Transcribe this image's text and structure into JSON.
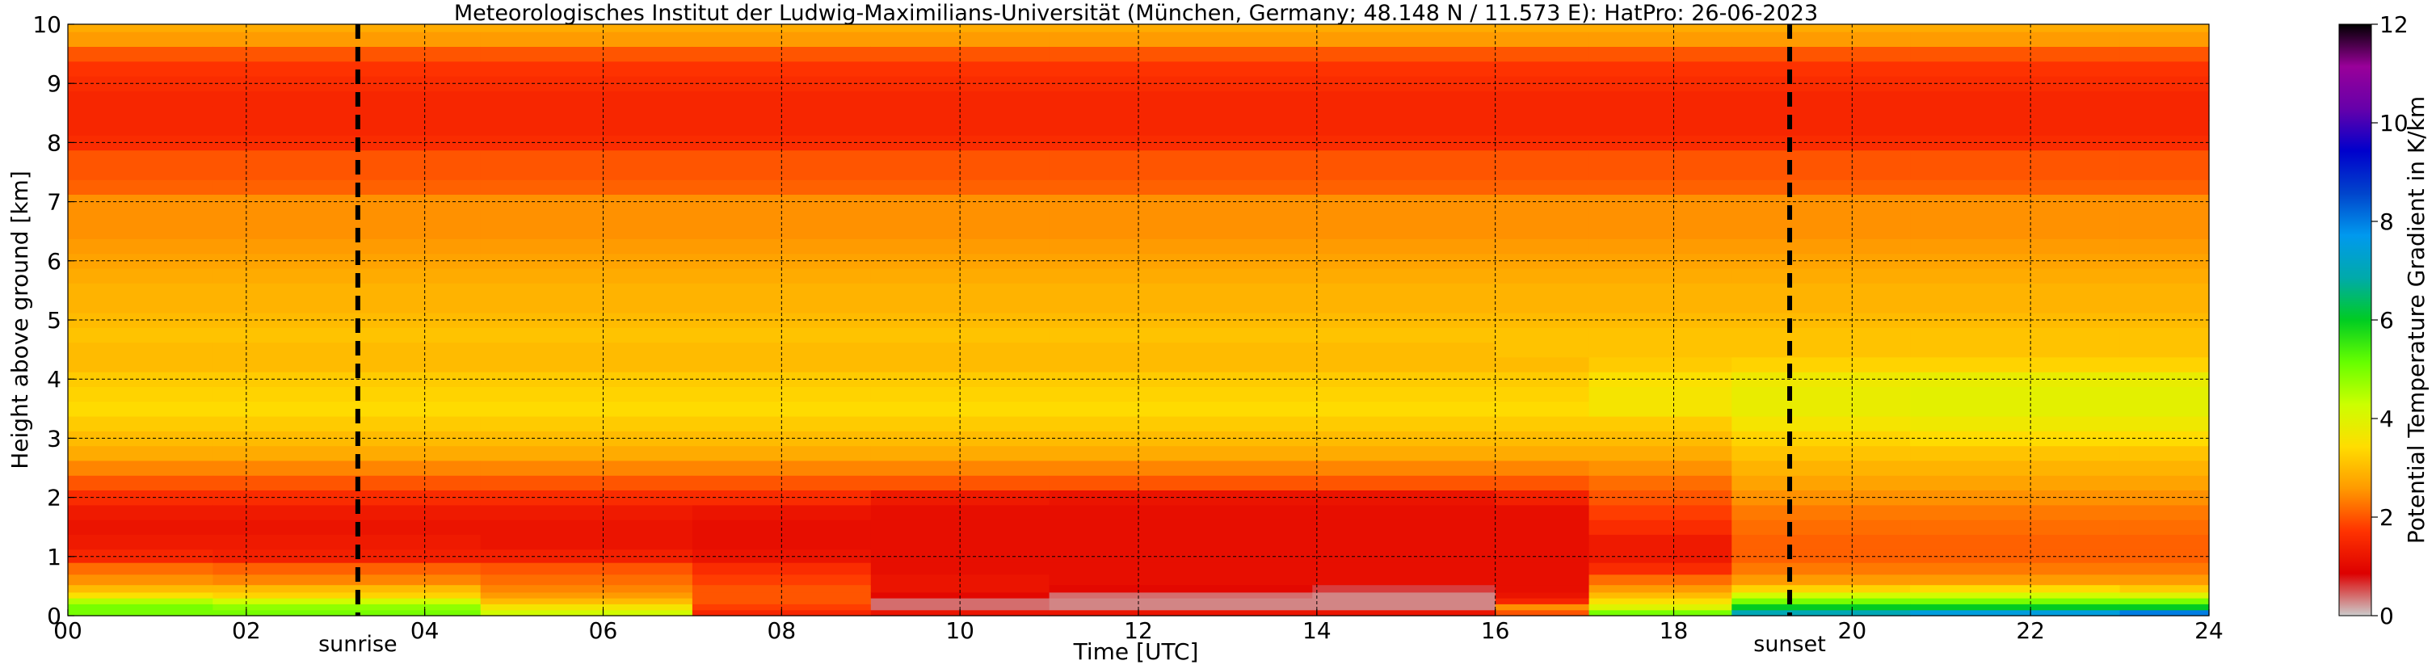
{
  "chart_data": {
    "type": "heatmap",
    "title": "Meteorologisches Institut der Ludwig-Maximilians-Universität (München, Germany; 48.148 N / 11.573 E):    HatPro: 26-06-2023",
    "xlabel": "Time [UTC]",
    "ylabel": "Height above ground [km]",
    "xlim": [
      0,
      24
    ],
    "ylim": [
      0,
      10
    ],
    "x_ticks": [
      "00",
      "02",
      "04",
      "06",
      "08",
      "10",
      "12",
      "14",
      "16",
      "18",
      "20",
      "22",
      "24"
    ],
    "y_ticks": [
      "0",
      "1",
      "2",
      "3",
      "4",
      "5",
      "6",
      "7",
      "8",
      "9",
      "10"
    ],
    "grid": true,
    "colorbar": {
      "label": "Potential Temperature Gradient in K/km",
      "range": [
        0,
        12
      ],
      "ticks": [
        "0",
        "2",
        "4",
        "6",
        "8",
        "10",
        "12"
      ],
      "colors": [
        "#cccccc",
        "#dd0000",
        "#ff3300",
        "#ff9900",
        "#ffdd00",
        "#ccff00",
        "#66ff00",
        "#00cc22",
        "#00aaaa",
        "#0099ee",
        "#0044cc",
        "#0000cc",
        "#6600aa",
        "#990099",
        "#000000"
      ]
    },
    "markers": [
      {
        "label": "sunrise",
        "time": 3.25
      },
      {
        "label": "sunset",
        "time": 19.3
      }
    ],
    "height_km": [
      0.05,
      0.15,
      0.25,
      0.35,
      0.45,
      0.6,
      0.8,
      1.0,
      1.25,
      1.5,
      1.75,
      2.0,
      2.25,
      2.5,
      2.75,
      3.0,
      3.25,
      3.5,
      3.75,
      4.0,
      4.25,
      4.5,
      4.75,
      5.0,
      5.25,
      5.5,
      5.75,
      6.0,
      6.25,
      6.5,
      6.75,
      7.0,
      7.25,
      7.5,
      7.75,
      8.0,
      8.25,
      8.5,
      8.75,
      9.0,
      9.25,
      9.5,
      9.75,
      10.0
    ],
    "profiles": [
      {
        "time": 0,
        "values": [
          5.0,
          5.0,
          4.5,
          3.5,
          3.0,
          2.5,
          2.2,
          1.5,
          1.3,
          1.2,
          1.3,
          1.6,
          2.0,
          2.4,
          2.8,
          3.0,
          3.2,
          3.4,
          3.3,
          3.2,
          3.0,
          3.0,
          3.1,
          3.0,
          2.9,
          2.9,
          2.8,
          2.7,
          2.6,
          2.5,
          2.5,
          2.5,
          2.1,
          2.0,
          2.0,
          1.6,
          1.5,
          1.5,
          1.5,
          1.6,
          1.7,
          2.0,
          2.6,
          2.8
        ]
      },
      {
        "time": 3.25,
        "values": [
          5.0,
          4.8,
          4.2,
          3.3,
          3.0,
          2.4,
          2.1,
          1.4,
          1.3,
          1.2,
          1.3,
          1.6,
          2.0,
          2.4,
          2.8,
          3.0,
          3.2,
          3.4,
          3.3,
          3.2,
          3.0,
          3.0,
          3.1,
          3.0,
          2.9,
          2.9,
          2.8,
          2.7,
          2.6,
          2.5,
          2.5,
          2.5,
          2.1,
          2.0,
          2.0,
          1.6,
          1.5,
          1.5,
          1.5,
          1.6,
          1.7,
          2.0,
          2.6,
          2.8
        ]
      },
      {
        "time": 6,
        "values": [
          4.2,
          3.6,
          3.0,
          2.6,
          2.4,
          2.2,
          2.0,
          1.4,
          1.2,
          1.2,
          1.3,
          1.6,
          2.0,
          2.4,
          2.8,
          3.0,
          3.2,
          3.4,
          3.3,
          3.2,
          3.0,
          3.0,
          3.1,
          3.0,
          2.9,
          2.9,
          2.8,
          2.7,
          2.6,
          2.5,
          2.5,
          2.5,
          2.1,
          2.0,
          2.0,
          1.6,
          1.5,
          1.5,
          1.5,
          1.6,
          1.7,
          2.0,
          2.6,
          2.8
        ]
      },
      {
        "time": 8,
        "values": [
          1.5,
          1.8,
          2.0,
          2.0,
          2.0,
          1.8,
          1.6,
          1.2,
          1.1,
          1.1,
          1.2,
          1.6,
          2.0,
          2.4,
          2.8,
          3.0,
          3.2,
          3.4,
          3.3,
          3.2,
          3.0,
          3.0,
          3.1,
          3.0,
          2.9,
          2.9,
          2.8,
          2.7,
          2.6,
          2.5,
          2.5,
          2.5,
          2.1,
          2.0,
          2.0,
          1.6,
          1.5,
          1.5,
          1.5,
          1.6,
          1.7,
          2.0,
          2.6,
          2.8
        ]
      },
      {
        "time": 10,
        "values": [
          1.2,
          0.4,
          0.4,
          1.0,
          1.2,
          1.2,
          1.1,
          1.1,
          1.1,
          1.1,
          1.1,
          1.3,
          2.0,
          2.4,
          2.8,
          3.0,
          3.2,
          3.4,
          3.3,
          3.2,
          3.0,
          3.0,
          3.1,
          3.0,
          2.9,
          2.9,
          2.8,
          2.7,
          2.6,
          2.5,
          2.5,
          2.5,
          2.1,
          2.0,
          2.0,
          1.6,
          1.5,
          1.5,
          1.5,
          1.6,
          1.7,
          2.0,
          2.6,
          2.8
        ]
      },
      {
        "time": 12,
        "values": [
          1.2,
          0.3,
          0.3,
          0.4,
          1.0,
          1.1,
          1.1,
          1.1,
          1.1,
          1.1,
          1.1,
          1.2,
          2.0,
          2.4,
          2.8,
          3.0,
          3.2,
          3.4,
          3.3,
          3.2,
          3.0,
          3.0,
          3.1,
          3.0,
          2.9,
          2.9,
          2.8,
          2.7,
          2.6,
          2.5,
          2.5,
          2.5,
          2.1,
          2.0,
          2.0,
          1.6,
          1.5,
          1.5,
          1.5,
          1.6,
          1.7,
          2.0,
          2.6,
          2.8
        ]
      },
      {
        "time": 15.9,
        "values": [
          1.2,
          0.3,
          0.3,
          0.3,
          0.6,
          1.1,
          1.1,
          1.1,
          1.1,
          1.1,
          1.1,
          1.2,
          2.0,
          2.4,
          2.8,
          3.0,
          3.2,
          3.4,
          3.3,
          3.2,
          3.0,
          3.0,
          3.1,
          3.0,
          2.9,
          2.9,
          2.8,
          2.7,
          2.6,
          2.5,
          2.5,
          2.5,
          2.1,
          2.0,
          2.0,
          1.6,
          1.5,
          1.5,
          1.5,
          1.6,
          1.7,
          2.0,
          2.6,
          2.8
        ]
      },
      {
        "time": 16.1,
        "values": [
          2.0,
          2.5,
          1.5,
          1.2,
          1.1,
          1.1,
          1.1,
          1.1,
          1.1,
          1.1,
          1.1,
          1.4,
          2.0,
          2.4,
          2.8,
          3.0,
          3.2,
          3.4,
          3.3,
          3.2,
          3.0,
          3.1,
          3.1,
          3.0,
          2.9,
          2.9,
          2.8,
          2.7,
          2.6,
          2.5,
          2.5,
          2.5,
          2.1,
          2.0,
          2.0,
          1.6,
          1.5,
          1.5,
          1.5,
          1.6,
          1.7,
          2.0,
          2.6,
          2.8
        ]
      },
      {
        "time": 18,
        "values": [
          5.0,
          4.0,
          3.5,
          3.0,
          2.6,
          2.2,
          1.6,
          1.3,
          1.3,
          1.6,
          1.8,
          2.0,
          2.2,
          2.5,
          2.8,
          3.0,
          3.2,
          3.6,
          3.6,
          3.5,
          3.2,
          3.1,
          3.1,
          3.0,
          2.9,
          2.9,
          2.8,
          2.7,
          2.6,
          2.5,
          2.5,
          2.5,
          2.1,
          2.0,
          2.0,
          1.6,
          1.5,
          1.5,
          1.5,
          1.6,
          1.7,
          2.0,
          2.6,
          2.8
        ]
      },
      {
        "time": 19.3,
        "values": [
          7.0,
          6.0,
          5.0,
          4.2,
          3.3,
          2.6,
          2.3,
          2.1,
          2.1,
          2.2,
          2.3,
          2.5,
          2.7,
          2.9,
          3.1,
          3.3,
          3.6,
          3.8,
          3.8,
          3.7,
          3.3,
          3.1,
          3.1,
          3.0,
          2.9,
          2.9,
          2.8,
          2.7,
          2.6,
          2.5,
          2.5,
          2.5,
          2.1,
          2.0,
          2.0,
          1.6,
          1.5,
          1.5,
          1.5,
          1.6,
          1.7,
          2.0,
          2.6,
          2.8
        ]
      },
      {
        "time": 22,
        "values": [
          7.5,
          6.0,
          5.0,
          4.2,
          3.4,
          2.6,
          2.3,
          2.1,
          2.1,
          2.2,
          2.3,
          2.5,
          2.7,
          2.9,
          3.1,
          3.4,
          3.7,
          3.9,
          3.9,
          3.8,
          3.3,
          3.1,
          3.1,
          3.0,
          2.9,
          2.9,
          2.8,
          2.7,
          2.6,
          2.5,
          2.5,
          2.5,
          2.1,
          2.0,
          2.0,
          1.6,
          1.5,
          1.5,
          1.5,
          1.6,
          1.7,
          2.0,
          2.6,
          2.8
        ]
      },
      {
        "time": 24,
        "values": [
          8.0,
          6.0,
          5.0,
          4.0,
          3.2,
          2.6,
          2.3,
          2.1,
          2.1,
          2.2,
          2.3,
          2.5,
          2.7,
          2.9,
          3.1,
          3.4,
          3.7,
          3.9,
          3.9,
          3.8,
          3.3,
          3.1,
          3.1,
          3.0,
          2.9,
          2.9,
          2.8,
          2.7,
          2.6,
          2.5,
          2.5,
          2.5,
          2.1,
          2.0,
          2.0,
          1.6,
          1.5,
          1.5,
          1.5,
          1.6,
          1.7,
          2.0,
          2.6,
          2.8
        ]
      }
    ]
  }
}
